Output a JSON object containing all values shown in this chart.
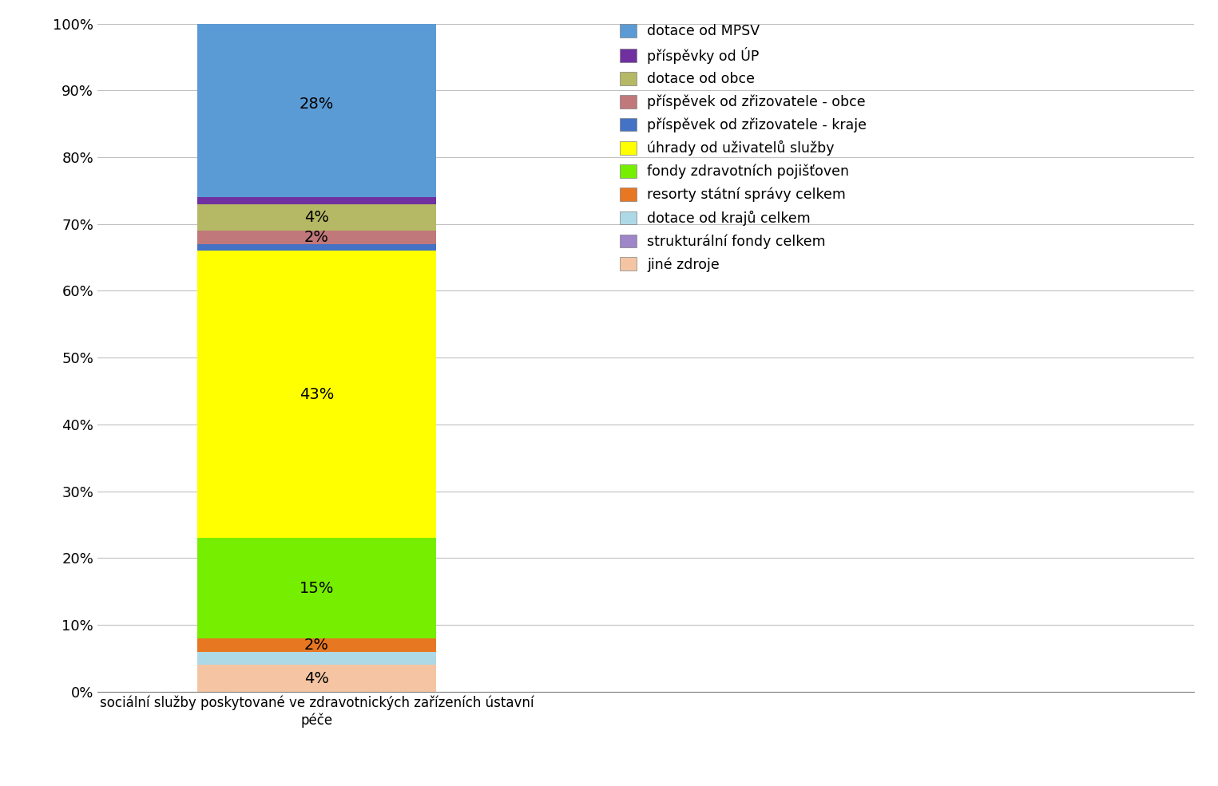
{
  "category": "sociální služby poskytované ve zdravotnických zařízeních ústavní\npéče",
  "segments": [
    {
      "label": "jiné zdroje",
      "value": 4,
      "color": "#F5C5A3"
    },
    {
      "label": "dotace od krajů celkem",
      "value": 2,
      "color": "#ADD8E6"
    },
    {
      "label": "resorty státní správy celkem",
      "value": 2,
      "color": "#E87722"
    },
    {
      "label": "fondy zdravotních pojišťoven",
      "value": 15,
      "color": "#76EE00"
    },
    {
      "label": "úhrady od uživatelů služby",
      "value": 43,
      "color": "#FFFF00"
    },
    {
      "label": "příspěvek od zřizovatele - kraje",
      "value": 1,
      "color": "#4472C4"
    },
    {
      "label": "příspěvek od zřizovatele - obce",
      "value": 2,
      "color": "#C0787A"
    },
    {
      "label": "dotace od obce",
      "value": 4,
      "color": "#B5B865"
    },
    {
      "label": "příspěvky od ÚP",
      "value": 1,
      "color": "#7030A0"
    },
    {
      "label": "dotace od MPSV",
      "value": 28,
      "color": "#5B9BD5"
    }
  ],
  "legend_order": [
    "dotace od MPSV",
    "příspěvky od ÚP",
    "dotace od obce",
    "příspěvek od zřizovatele - obce",
    "příspěvek od zřizovatele - kraje",
    "úhrady od uživatelů služby",
    "fondy zdravotních pojišťoven",
    "resorty státní správy celkem",
    "dotace od krajů celkem",
    "strukturální fondy celkem",
    "jiné zdroje"
  ],
  "legend_colors": {
    "dotace od MPSV": "#5B9BD5",
    "příspěvky od ÚP": "#7030A0",
    "dotace od obce": "#B5B865",
    "příspěvek od zřizovatele - obce": "#C0787A",
    "příspěvek od zřizovatele - kraje": "#4472C4",
    "úhrady od uživatelů služby": "#FFFF00",
    "fondy zdravotních pojišťoven": "#76EE00",
    "resorty státní správy celkem": "#E87722",
    "dotace od krajů celkem": "#ADD8E6",
    "strukturální fondy celkem": "#9E86C8",
    "jiné zdroje": "#F5C5A3"
  },
  "label_segments": [
    "jiné zdroje",
    "resorty státní správy celkem",
    "fondy zdravotních pojišťoven",
    "úhrady od uživatelů služby",
    "příspěvek od zřizovatele - obce",
    "dotace od obce",
    "dotace od MPSV"
  ],
  "background_color": "#FFFFFF",
  "ylim": [
    0,
    100
  ],
  "yticks": [
    0,
    10,
    20,
    30,
    40,
    50,
    60,
    70,
    80,
    90,
    100
  ],
  "bar_width": 0.6,
  "figsize": [
    15.25,
    9.85
  ],
  "dpi": 100
}
